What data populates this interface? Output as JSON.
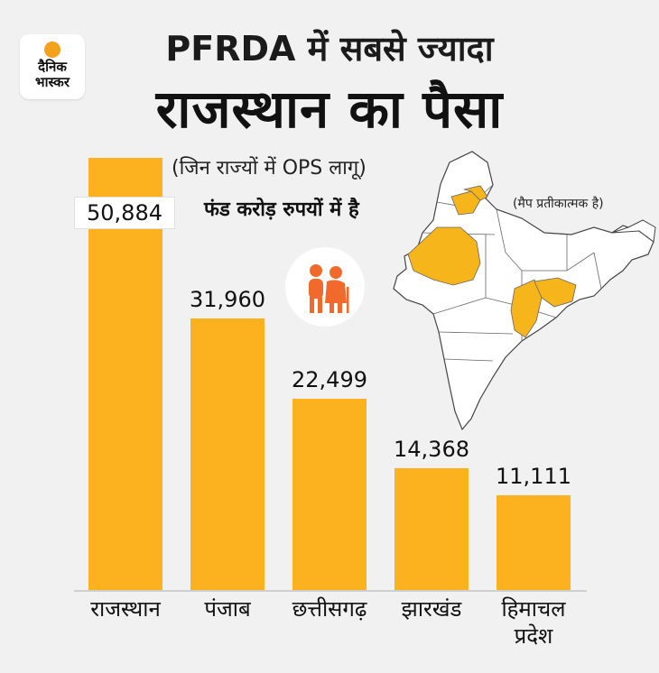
{
  "brand": {
    "line1": "दैनिक",
    "line2": "भास्कर",
    "accent": "#f4a21b"
  },
  "headline": {
    "line1": "PFRDA में सबसे ज्यादा",
    "line2": "राजस्थान का पैसा"
  },
  "subtitle": "(जिन राज्यों में OPS लागू)",
  "unit_note": "फंड करोड़ रुपयों में है",
  "map_note": "(मैप प्रतीकात्मक है)",
  "icons": {
    "elderly": "elderly-couple-icon",
    "map": "india-map"
  },
  "colors": {
    "bar": "#fcb11f",
    "highlight": "#f7b51c",
    "icon": "#f26a2b"
  },
  "chart_data": {
    "type": "bar",
    "categories": [
      "राजस्थान",
      "पंजाब",
      "छत्तीसगढ़",
      "झारखंड",
      "हिमाचल प्रदेश"
    ],
    "values": [
      50884,
      31960,
      22499,
      14368,
      11111
    ],
    "value_labels": [
      "50,884",
      "31,960",
      "22,499",
      "14,368",
      "11,111"
    ],
    "title": "PFRDA में सबसे ज्यादा राजस्थान का पैसा",
    "ylim": [
      0,
      51000
    ],
    "grid": false,
    "legend": "none"
  }
}
